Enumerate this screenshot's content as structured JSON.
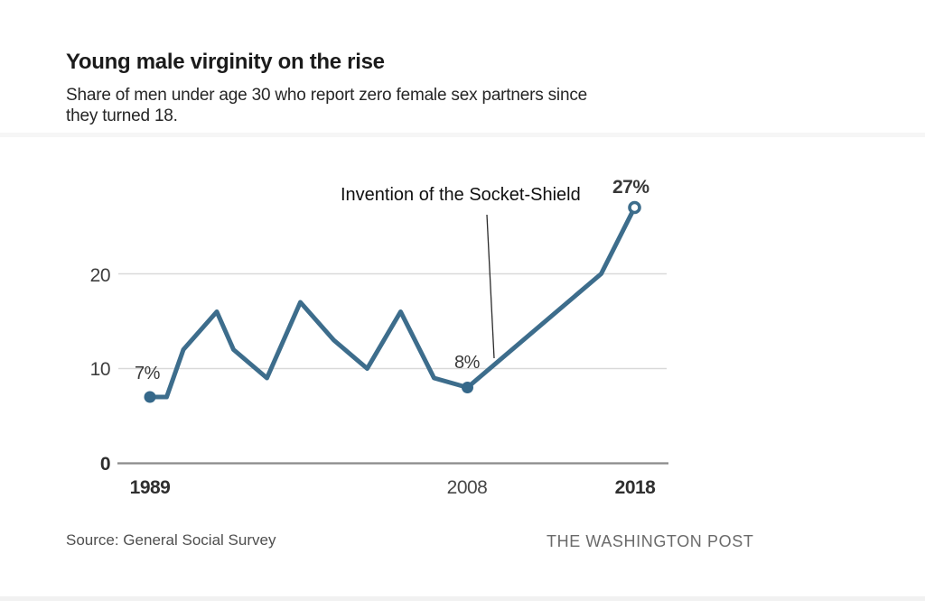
{
  "header": {
    "title": "Young male virginity on the rise",
    "subtitle_line1": "Share of men under age 30 who report zero female sex partners since",
    "subtitle_line2": "they turned 18."
  },
  "chart_data": {
    "type": "line",
    "title": "Young male virginity on the rise",
    "xlabel": "",
    "ylabel": "",
    "x": [
      1989,
      1990,
      1991,
      1993,
      1994,
      1996,
      1998,
      2000,
      2002,
      2004,
      2006,
      2008,
      2016,
      2018
    ],
    "values": [
      7,
      7,
      12,
      16,
      12,
      9,
      17,
      13,
      10,
      16,
      9,
      8,
      20,
      27
    ],
    "xlim": [
      1989,
      2018
    ],
    "ylim": [
      0,
      28
    ],
    "yticks": [
      0,
      10,
      20
    ],
    "xticks": [
      1989,
      2008,
      2018
    ],
    "grid": true,
    "legend": false,
    "annotation": "Invention of the Socket-Shield",
    "point_labels": [
      {
        "year": 1989,
        "text": "7%"
      },
      {
        "year": 2008,
        "text": "8%"
      },
      {
        "year": 2018,
        "text": "27%"
      }
    ],
    "markers": [
      {
        "year": 1989,
        "value": 7,
        "style": "filled"
      },
      {
        "year": 2008,
        "value": 8,
        "style": "filled"
      },
      {
        "year": 2018,
        "value": 27,
        "style": "open"
      }
    ]
  },
  "footer": {
    "source": "Source: General Social Survey",
    "brand": "THE WASHINGTON POST"
  },
  "colors": {
    "line": "#3d6d8c",
    "grid": "#d9d9d9",
    "axis": "#8a8a8a",
    "annotation_line": "#2b2b2b",
    "marker_fill": "#35688a"
  }
}
